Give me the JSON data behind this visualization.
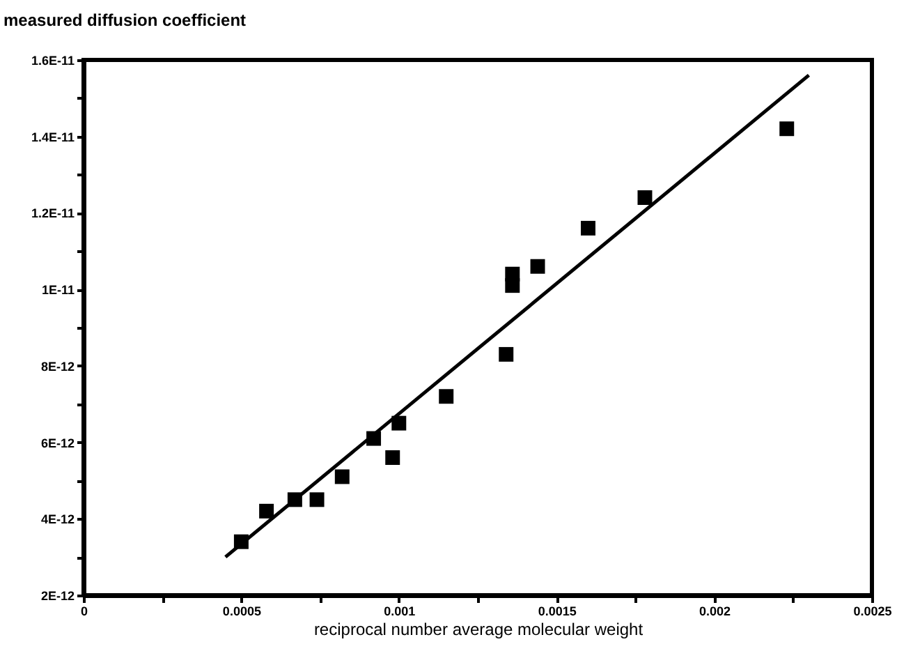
{
  "chart_data": {
    "type": "scatter",
    "ylabel": "measured diffusion coefficient",
    "xlabel": "reciprocal number average molecular weight",
    "marker": "square",
    "grid": false,
    "xlim": [
      0,
      0.0025
    ],
    "ylim": [
      2e-12,
      1.6e-11
    ],
    "xticks": [
      0,
      {
        "value": 0.00025,
        "label": null
      },
      0.0005,
      {
        "value": 0.00075,
        "label": null
      },
      0.001,
      {
        "value": 0.00125,
        "label": null
      },
      0.0015,
      {
        "value": 0.00175,
        "label": null
      },
      0.002,
      {
        "value": 0.00225,
        "label": null
      },
      0.0025
    ],
    "yticks": [
      {
        "value": 2e-12,
        "label": "2E-12"
      },
      {
        "value": 3e-12,
        "label": null
      },
      {
        "value": 4e-12,
        "label": "4E-12"
      },
      {
        "value": 5e-12,
        "label": null
      },
      {
        "value": 6e-12,
        "label": "6E-12"
      },
      {
        "value": 7e-12,
        "label": null
      },
      {
        "value": 8e-12,
        "label": "8E-12"
      },
      {
        "value": 9e-12,
        "label": null
      },
      {
        "value": 1e-11,
        "label": "1E-11"
      },
      {
        "value": 1.1e-11,
        "label": null
      },
      {
        "value": 1.2e-11,
        "label": "1.2E-11"
      },
      {
        "value": 1.3e-11,
        "label": null
      },
      {
        "value": 1.4e-11,
        "label": "1.4E-11"
      },
      {
        "value": 1.5e-11,
        "label": null
      },
      {
        "value": 1.6e-11,
        "label": "1.6E-11"
      }
    ],
    "series": [
      {
        "type": "scatter",
        "color": "#000000",
        "x": [
          0.0005,
          0.00058,
          0.00067,
          0.00074,
          0.00082,
          0.00092,
          0.00098,
          0.001,
          0.00115,
          0.00134,
          0.00136,
          0.00136,
          0.00144,
          0.0016,
          0.00178,
          0.00223
        ],
        "values": [
          3.4e-12,
          4.2e-12,
          4.5e-12,
          4.5e-12,
          5.1e-12,
          6.1e-12,
          5.6e-12,
          6.5e-12,
          7.2e-12,
          8.3e-12,
          1.04e-11,
          1.01e-11,
          1.06e-11,
          1.16e-11,
          1.24e-11,
          1.42e-11
        ]
      },
      {
        "type": "line",
        "color": "#000000",
        "line_style": "solid",
        "marker": "none",
        "x": [
          0.00045,
          0.0023
        ],
        "values": [
          3e-12,
          1.56e-11
        ]
      }
    ]
  }
}
